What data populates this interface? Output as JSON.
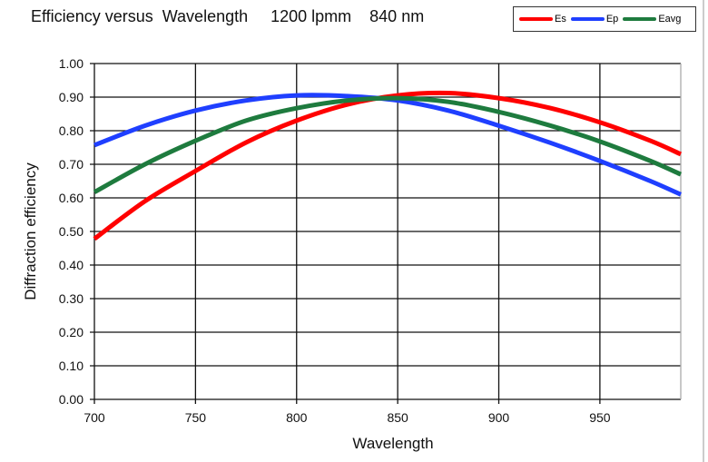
{
  "chart_data": {
    "type": "line",
    "title": "Efficiency versus  Wavelength     1200 lpmm    840 nm",
    "xlabel": "Wavelength",
    "ylabel": "Diffraction  efficiency",
    "xlim": [
      700,
      990
    ],
    "ylim": [
      0,
      1
    ],
    "xticks": [
      "700",
      "750",
      "800",
      "850",
      "900",
      "950"
    ],
    "yticks": [
      "0.00",
      "0.10",
      "0.20",
      "0.30",
      "0.40",
      "0.50",
      "0.60",
      "0.70",
      "0.80",
      "0.90",
      "1.00"
    ],
    "grid": true,
    "legend_position": "top-right",
    "x": [
      700,
      725,
      750,
      775,
      800,
      825,
      850,
      875,
      900,
      925,
      950,
      975,
      990
    ],
    "series": [
      {
        "name": "Es",
        "color": "#ff0000",
        "values": [
          0.478,
          0.59,
          0.68,
          0.765,
          0.83,
          0.878,
          0.905,
          0.912,
          0.897,
          0.868,
          0.825,
          0.77,
          0.73
        ]
      },
      {
        "name": "Ep",
        "color": "#1f3fff",
        "values": [
          0.757,
          0.815,
          0.86,
          0.89,
          0.905,
          0.903,
          0.89,
          0.86,
          0.815,
          0.765,
          0.71,
          0.65,
          0.61
        ]
      },
      {
        "name": "Eavg",
        "color": "#1e7b3e",
        "values": [
          0.617,
          0.7,
          0.77,
          0.83,
          0.867,
          0.89,
          0.897,
          0.886,
          0.856,
          0.816,
          0.768,
          0.71,
          0.67
        ]
      }
    ]
  }
}
